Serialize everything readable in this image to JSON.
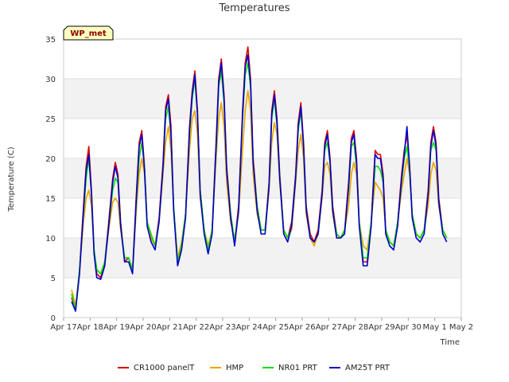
{
  "chart_data": {
    "type": "line",
    "title": "Temperatures",
    "xlabel": "Time",
    "ylabel": "Temperature (C)",
    "badge": "WP_met",
    "xlim": [
      0,
      15
    ],
    "ylim": [
      0,
      35
    ],
    "yticks": [
      0,
      5,
      10,
      15,
      20,
      25,
      30,
      35
    ],
    "xticks": [
      {
        "value": 0,
        "label": "Apr 17"
      },
      {
        "value": 1,
        "label": "Apr 18"
      },
      {
        "value": 2,
        "label": "Apr 19"
      },
      {
        "value": 3,
        "label": "Apr 20"
      },
      {
        "value": 4,
        "label": "Apr 21"
      },
      {
        "value": 5,
        "label": "Apr 22"
      },
      {
        "value": 6,
        "label": "Apr 23"
      },
      {
        "value": 7,
        "label": "Apr 24"
      },
      {
        "value": 8,
        "label": "Apr 25"
      },
      {
        "value": 9,
        "label": "Apr 26"
      },
      {
        "value": 10,
        "label": "Apr 27"
      },
      {
        "value": 11,
        "label": "Apr 28"
      },
      {
        "value": 12,
        "label": "Apr 29"
      },
      {
        "value": 13,
        "label": "Apr 30"
      },
      {
        "value": 14,
        "label": "May 1"
      },
      {
        "value": 15,
        "label": "May 2"
      }
    ],
    "series": [
      {
        "name": "CR1000 panelT",
        "color": "#dd0000",
        "x": [
          0.3,
          0.45,
          0.6,
          0.75,
          0.85,
          0.95,
          1.05,
          1.15,
          1.25,
          1.4,
          1.55,
          1.7,
          1.85,
          1.95,
          2.05,
          2.15,
          2.3,
          2.45,
          2.6,
          2.75,
          2.85,
          2.95,
          3.05,
          3.15,
          3.3,
          3.45,
          3.6,
          3.75,
          3.85,
          3.95,
          4.05,
          4.15,
          4.3,
          4.45,
          4.6,
          4.75,
          4.85,
          4.95,
          5.05,
          5.15,
          5.3,
          5.45,
          5.6,
          5.75,
          5.85,
          5.95,
          6.05,
          6.15,
          6.3,
          6.45,
          6.6,
          6.75,
          6.85,
          6.95,
          7.05,
          7.15,
          7.3,
          7.45,
          7.6,
          7.75,
          7.85,
          7.95,
          8.05,
          8.15,
          8.3,
          8.45,
          8.6,
          8.75,
          8.85,
          8.95,
          9.05,
          9.15,
          9.3,
          9.45,
          9.6,
          9.75,
          9.85,
          9.95,
          10.05,
          10.15,
          10.3,
          10.45,
          10.6,
          10.75,
          10.85,
          10.95,
          11.05,
          11.15,
          11.3,
          11.45,
          11.6,
          11.75,
          11.85,
          11.95,
          12.05,
          12.15,
          12.3,
          12.45,
          12.6,
          12.75,
          12.85,
          12.95,
          13.05,
          13.15,
          13.3,
          13.45,
          13.6,
          13.75,
          13.85,
          13.95,
          14.05,
          14.15,
          14.3,
          14.45
        ],
        "values": [
          2.5,
          1.0,
          6.0,
          14.0,
          19.0,
          21.5,
          16.0,
          8.5,
          5.5,
          5.0,
          7.0,
          12.0,
          17.5,
          19.5,
          18.0,
          12.0,
          7.0,
          7.5,
          6.0,
          16.0,
          22.0,
          23.5,
          19.0,
          12.0,
          10.0,
          9.0,
          12.5,
          19.5,
          26.5,
          28.0,
          24.0,
          14.0,
          7.0,
          9.0,
          13.0,
          24.0,
          28.5,
          31.0,
          26.0,
          16.0,
          11.0,
          8.5,
          11.0,
          22.0,
          30.0,
          32.5,
          28.0,
          19.0,
          13.0,
          9.5,
          14.0,
          26.0,
          32.0,
          34.0,
          30.0,
          20.0,
          14.0,
          11.0,
          11.0,
          17.0,
          26.0,
          28.5,
          25.0,
          18.0,
          11.0,
          10.0,
          12.0,
          18.0,
          24.5,
          27.0,
          22.0,
          14.0,
          10.5,
          9.5,
          11.0,
          16.0,
          22.0,
          23.5,
          20.0,
          14.0,
          10.5,
          10.0,
          11.0,
          17.0,
          22.5,
          23.5,
          20.0,
          12.0,
          7.0,
          7.0,
          12.0,
          21.0,
          20.5,
          20.5,
          18.0,
          11.0,
          9.5,
          9.0,
          12.0,
          18.0,
          21.0,
          23.0,
          19.0,
          13.0,
          10.5,
          10.0,
          11.0,
          16.0,
          22.0,
          24.0,
          22.0,
          15.0,
          11.0,
          10.0
        ]
      },
      {
        "name": "HMP",
        "color": "#f0a000",
        "x": [
          0.3,
          0.45,
          0.6,
          0.75,
          0.85,
          0.95,
          1.05,
          1.15,
          1.25,
          1.4,
          1.55,
          1.7,
          1.85,
          1.95,
          2.05,
          2.15,
          2.3,
          2.45,
          2.6,
          2.75,
          2.85,
          2.95,
          3.05,
          3.15,
          3.3,
          3.45,
          3.6,
          3.75,
          3.85,
          3.95,
          4.05,
          4.15,
          4.3,
          4.45,
          4.6,
          4.75,
          4.85,
          4.95,
          5.05,
          5.15,
          5.3,
          5.45,
          5.6,
          5.75,
          5.85,
          5.95,
          6.05,
          6.15,
          6.3,
          6.45,
          6.6,
          6.75,
          6.85,
          6.95,
          7.05,
          7.15,
          7.3,
          7.45,
          7.6,
          7.75,
          7.85,
          7.95,
          8.05,
          8.15,
          8.3,
          8.45,
          8.6,
          8.75,
          8.85,
          8.95,
          9.05,
          9.15,
          9.3,
          9.45,
          9.6,
          9.75,
          9.85,
          9.95,
          10.05,
          10.15,
          10.3,
          10.45,
          10.6,
          10.75,
          10.85,
          10.95,
          11.05,
          11.15,
          11.3,
          11.45,
          11.6,
          11.75,
          11.85,
          11.95,
          12.05,
          12.15,
          12.3,
          12.45,
          12.6,
          12.75,
          12.85,
          12.95,
          13.05,
          13.15,
          13.3,
          13.45,
          13.6,
          13.75,
          13.85,
          13.95,
          14.05,
          14.15,
          14.3,
          14.45
        ],
        "values": [
          3.5,
          1.5,
          6.0,
          12.0,
          15.0,
          16.0,
          14.0,
          8.5,
          6.0,
          5.5,
          7.0,
          11.0,
          14.5,
          15.0,
          14.5,
          11.0,
          7.5,
          7.5,
          6.0,
          14.0,
          18.0,
          20.0,
          18.0,
          12.0,
          10.0,
          9.0,
          12.0,
          18.0,
          22.0,
          24.0,
          21.0,
          14.0,
          7.5,
          9.5,
          13.0,
          21.0,
          25.0,
          26.0,
          23.0,
          15.0,
          11.0,
          9.0,
          11.0,
          20.0,
          25.0,
          27.0,
          24.0,
          17.0,
          12.0,
          10.0,
          13.0,
          21.0,
          26.0,
          28.5,
          26.0,
          18.0,
          13.0,
          11.0,
          11.0,
          16.0,
          22.0,
          24.5,
          23.0,
          17.0,
          11.0,
          10.0,
          11.0,
          17.0,
          21.0,
          23.0,
          20.0,
          13.0,
          10.0,
          9.0,
          10.5,
          15.0,
          19.0,
          19.5,
          18.0,
          13.0,
          10.0,
          10.0,
          11.0,
          14.0,
          18.0,
          19.5,
          18.0,
          12.0,
          9.0,
          8.5,
          12.0,
          17.0,
          16.5,
          16.0,
          15.0,
          11.0,
          9.5,
          9.0,
          12.0,
          16.0,
          18.0,
          20.0,
          18.0,
          13.0,
          10.5,
          10.0,
          11.0,
          14.0,
          18.0,
          19.5,
          18.5,
          14.0,
          11.0,
          10.0
        ]
      },
      {
        "name": "NR01 PRT",
        "color": "#00e000",
        "x": [
          0.3,
          0.45,
          0.6,
          0.75,
          0.85,
          0.95,
          1.05,
          1.15,
          1.25,
          1.4,
          1.55,
          1.7,
          1.85,
          1.95,
          2.05,
          2.15,
          2.3,
          2.45,
          2.6,
          2.75,
          2.85,
          2.95,
          3.05,
          3.15,
          3.3,
          3.45,
          3.6,
          3.75,
          3.85,
          3.95,
          4.05,
          4.15,
          4.3,
          4.45,
          4.6,
          4.75,
          4.85,
          4.95,
          5.05,
          5.15,
          5.3,
          5.45,
          5.6,
          5.75,
          5.85,
          5.95,
          6.05,
          6.15,
          6.3,
          6.45,
          6.6,
          6.75,
          6.85,
          6.95,
          7.05,
          7.15,
          7.3,
          7.45,
          7.6,
          7.75,
          7.85,
          7.95,
          8.05,
          8.15,
          8.3,
          8.45,
          8.6,
          8.75,
          8.85,
          8.95,
          9.05,
          9.15,
          9.3,
          9.45,
          9.6,
          9.75,
          9.85,
          9.95,
          10.05,
          10.15,
          10.3,
          10.45,
          10.6,
          10.75,
          10.85,
          10.95,
          11.05,
          11.15,
          11.3,
          11.45,
          11.6,
          11.75,
          11.85,
          11.95,
          12.05,
          12.15,
          12.3,
          12.45,
          12.6,
          12.75,
          12.85,
          12.95,
          13.05,
          13.15,
          13.3,
          13.45,
          13.6,
          13.75,
          13.85,
          13.95,
          14.05,
          14.15,
          14.3,
          14.45
        ],
        "values": [
          3.0,
          1.0,
          6.0,
          13.0,
          17.5,
          20.0,
          15.5,
          8.5,
          6.0,
          5.5,
          7.0,
          11.5,
          16.0,
          17.5,
          17.0,
          11.5,
          7.5,
          7.5,
          6.0,
          15.0,
          20.0,
          22.0,
          19.0,
          12.0,
          10.5,
          9.0,
          12.0,
          19.0,
          25.0,
          26.5,
          23.0,
          14.0,
          7.0,
          9.0,
          13.0,
          23.0,
          27.5,
          30.0,
          25.5,
          16.0,
          11.0,
          8.5,
          11.0,
          21.0,
          29.0,
          31.0,
          27.0,
          18.5,
          13.0,
          9.5,
          13.5,
          25.0,
          30.5,
          32.0,
          29.0,
          19.5,
          14.0,
          11.0,
          11.0,
          16.5,
          25.0,
          27.5,
          24.0,
          17.5,
          11.0,
          10.0,
          11.5,
          17.5,
          23.5,
          26.0,
          21.5,
          13.5,
          10.0,
          9.5,
          10.5,
          15.5,
          21.0,
          22.0,
          19.5,
          13.5,
          10.5,
          10.0,
          11.0,
          16.0,
          21.5,
          22.0,
          19.0,
          12.0,
          7.5,
          7.5,
          12.0,
          19.0,
          19.0,
          18.5,
          17.0,
          11.0,
          9.5,
          9.0,
          12.0,
          17.0,
          20.0,
          21.5,
          18.5,
          13.0,
          10.5,
          10.0,
          11.0,
          15.5,
          21.0,
          22.0,
          21.0,
          14.5,
          11.0,
          10.0
        ]
      },
      {
        "name": "AM25T PRT",
        "color": "#0000cc",
        "x": [
          0.3,
          0.45,
          0.6,
          0.75,
          0.85,
          0.95,
          1.05,
          1.15,
          1.25,
          1.4,
          1.55,
          1.7,
          1.85,
          1.95,
          2.05,
          2.15,
          2.3,
          2.45,
          2.6,
          2.75,
          2.85,
          2.95,
          3.05,
          3.15,
          3.3,
          3.45,
          3.6,
          3.75,
          3.85,
          3.95,
          4.05,
          4.15,
          4.3,
          4.45,
          4.6,
          4.75,
          4.85,
          4.95,
          5.05,
          5.15,
          5.3,
          5.45,
          5.6,
          5.75,
          5.85,
          5.95,
          6.05,
          6.15,
          6.3,
          6.45,
          6.6,
          6.75,
          6.85,
          6.95,
          7.05,
          7.15,
          7.3,
          7.45,
          7.6,
          7.75,
          7.85,
          7.95,
          8.05,
          8.15,
          8.3,
          8.45,
          8.6,
          8.75,
          8.85,
          8.95,
          9.05,
          9.15,
          9.3,
          9.45,
          9.6,
          9.75,
          9.85,
          9.95,
          10.05,
          10.15,
          10.3,
          10.45,
          10.6,
          10.75,
          10.85,
          10.95,
          11.05,
          11.15,
          11.3,
          11.45,
          11.6,
          11.75,
          11.85,
          11.95,
          12.05,
          12.15,
          12.3,
          12.45,
          12.6,
          12.75,
          12.85,
          12.95,
          13.05,
          13.15,
          13.3,
          13.45,
          13.6,
          13.75,
          13.85,
          13.95,
          14.05,
          14.15,
          14.3,
          14.45
        ],
        "values": [
          2.0,
          0.8,
          5.5,
          13.5,
          18.5,
          20.5,
          15.5,
          8.0,
          5.0,
          4.8,
          6.5,
          11.5,
          17.0,
          19.0,
          17.5,
          11.5,
          7.0,
          7.0,
          5.5,
          15.5,
          21.5,
          23.0,
          18.5,
          11.5,
          9.5,
          8.5,
          12.0,
          19.0,
          26.0,
          27.5,
          23.0,
          13.5,
          6.5,
          8.5,
          12.5,
          23.5,
          28.0,
          30.5,
          25.5,
          15.5,
          10.5,
          8.0,
          10.5,
          21.5,
          29.5,
          32.0,
          27.5,
          18.5,
          12.5,
          9.0,
          13.5,
          25.5,
          31.5,
          33.0,
          29.5,
          19.5,
          13.5,
          10.5,
          10.5,
          16.5,
          25.5,
          28.0,
          24.5,
          17.5,
          10.5,
          9.5,
          11.5,
          17.5,
          24.0,
          26.5,
          21.5,
          13.5,
          10.0,
          9.5,
          10.5,
          15.5,
          21.5,
          23.0,
          19.5,
          13.5,
          10.0,
          10.0,
          10.5,
          16.5,
          22.0,
          23.0,
          19.5,
          11.5,
          6.5,
          6.5,
          11.5,
          20.5,
          20.0,
          20.0,
          17.5,
          10.5,
          9.0,
          8.5,
          11.5,
          17.5,
          20.5,
          24.0,
          19.0,
          12.5,
          10.0,
          9.5,
          10.5,
          15.5,
          21.5,
          23.5,
          21.5,
          14.5,
          10.5,
          9.5
        ]
      }
    ]
  }
}
